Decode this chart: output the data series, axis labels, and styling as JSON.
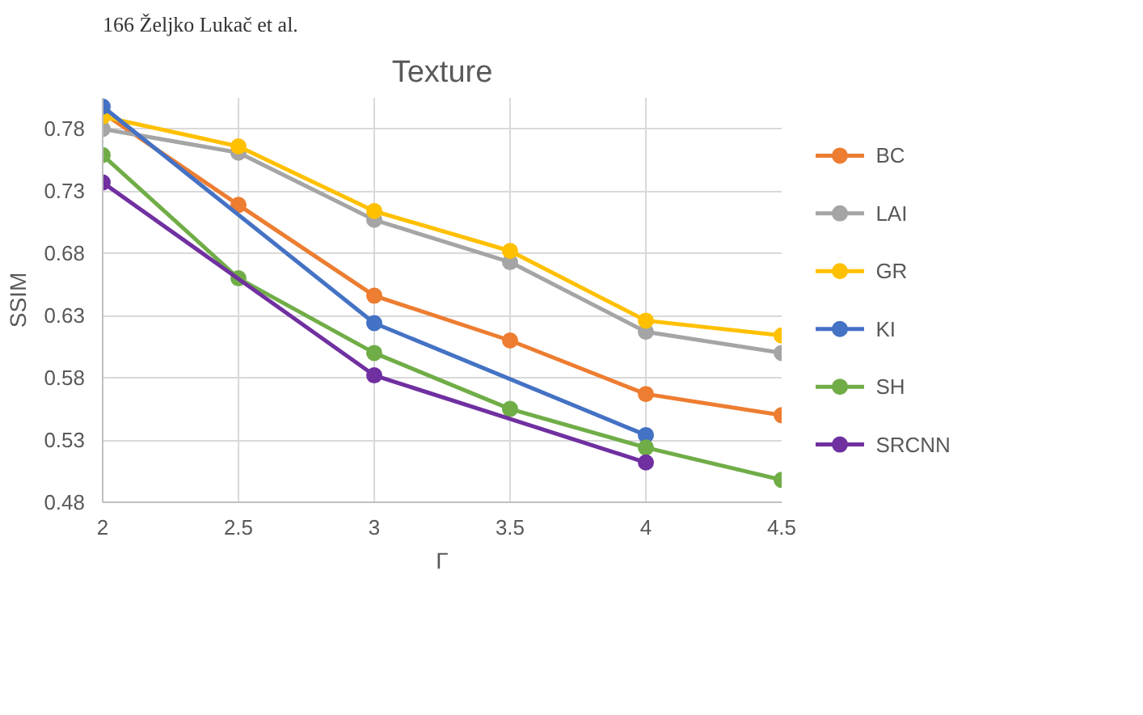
{
  "chart_data": {
    "type": "line",
    "title": "Texture",
    "xlabel": "Γ",
    "ylabel": "SSIM",
    "annotations": [
      "166        Željko Lukač et al."
    ],
    "x": [
      2,
      2.5,
      3,
      3.5,
      4,
      4.5
    ],
    "xlim": [
      2,
      4.5
    ],
    "xticks": [
      2,
      2.5,
      3,
      3.5,
      4,
      4.5
    ],
    "ylim": [
      0.48,
      0.805
    ],
    "yticks": [
      0.48,
      0.53,
      0.58,
      0.63,
      0.68,
      0.73,
      0.78
    ],
    "grid": true,
    "legend": "right",
    "marker": "circle",
    "line_style": "solid",
    "series": [
      {
        "name": "BC",
        "color": "#ed7d31",
        "values": [
          0.793,
          0.719,
          0.646,
          0.61,
          0.567,
          0.55
        ]
      },
      {
        "name": "LAI",
        "color": "#a5a5a5",
        "values": [
          0.78,
          0.761,
          0.707,
          0.673,
          0.617,
          0.6
        ]
      },
      {
        "name": "GR",
        "color": "#ffc000",
        "values": [
          0.79,
          0.766,
          0.714,
          0.682,
          0.626,
          0.614
        ]
      },
      {
        "name": "KI",
        "color": "#4472c4",
        "values": [
          0.798,
          null,
          0.624,
          null,
          0.534,
          null
        ]
      },
      {
        "name": "SH",
        "color": "#70ad47",
        "values": [
          0.759,
          0.66,
          0.6,
          0.555,
          0.524,
          0.498
        ]
      },
      {
        "name": "SRCNN",
        "color": "#7030a0",
        "values": [
          0.737,
          null,
          0.582,
          null,
          0.512,
          null
        ]
      }
    ]
  }
}
